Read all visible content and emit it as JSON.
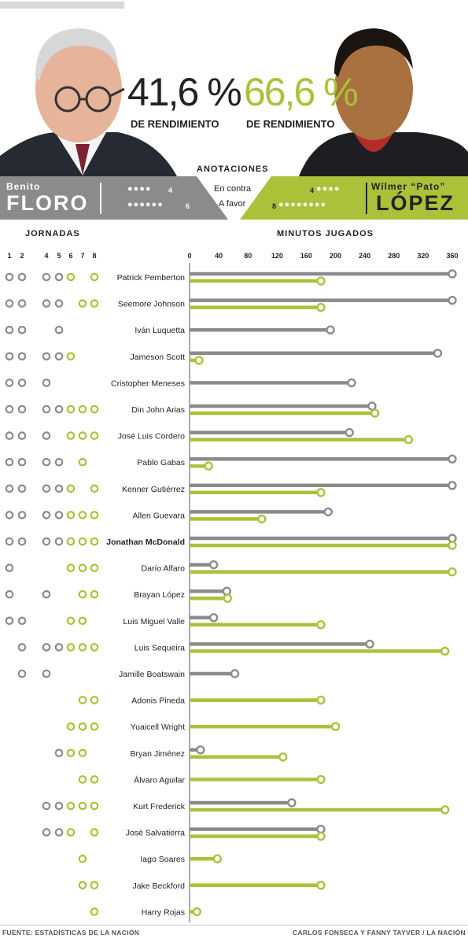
{
  "coaches": {
    "left": {
      "first": "Benito",
      "last": "FLORO",
      "pct": "41,6 %",
      "pct_label": "DE RENDIMIENTO",
      "against": "4",
      "for": "6"
    },
    "right": {
      "first": "Wílmer “Pato”",
      "last": "LÓPEZ",
      "pct": "66,6 %",
      "pct_label": "DE RENDIMIENTO",
      "against": "4",
      "for": "8"
    }
  },
  "legend": {
    "title": "ANOTACIONES",
    "against": "En contra",
    "for": "A favor"
  },
  "colors": {
    "floro": "#8b8b8d",
    "lopez": "#a9c23a"
  },
  "footer": {
    "source": "FUENTE: ESTADÍSTICAS DE LA NACIÓN",
    "credit": "CARLOS FONSECA Y FANNY TAYVER / LA NACIÓN"
  },
  "chart_data": {
    "type": "bar",
    "jornadas_title": "JORNADAS",
    "minutes_title": "MINUTOS JUGADOS",
    "jornadas": [
      "1",
      "2",
      "4",
      "5",
      "6",
      "7",
      "8"
    ],
    "xticks": [
      0,
      40,
      80,
      120,
      160,
      200,
      240,
      280,
      320,
      360
    ],
    "xlim": [
      0,
      360
    ],
    "players": [
      {
        "name": "Patrick Pemberton",
        "bold": false,
        "j": [
          "g",
          "g",
          "g",
          "g",
          "y",
          "",
          "y"
        ],
        "floro": 360,
        "lopez": 180
      },
      {
        "name": "Seemore Johnson",
        "bold": false,
        "j": [
          "g",
          "g",
          "g",
          "g",
          "",
          "y",
          "y"
        ],
        "floro": 360,
        "lopez": 180
      },
      {
        "name": "Iván Luquetta",
        "bold": false,
        "j": [
          "g",
          "g",
          "",
          "g",
          "",
          "",
          ""
        ],
        "floro": 193,
        "lopez": null
      },
      {
        "name": "Jameson Scott",
        "bold": false,
        "j": [
          "g",
          "g",
          "g",
          "g",
          "y",
          "",
          ""
        ],
        "floro": 340,
        "lopez": 13
      },
      {
        "name": "Cristopher Meneses",
        "bold": false,
        "j": [
          "g",
          "g",
          "g",
          "",
          "",
          "",
          ""
        ],
        "floro": 222,
        "lopez": null
      },
      {
        "name": "Din John Arias",
        "bold": false,
        "j": [
          "g",
          "g",
          "g",
          "g",
          "y",
          "y",
          "y"
        ],
        "floro": 250,
        "lopez": 254
      },
      {
        "name": "José Luis Cordero",
        "bold": false,
        "j": [
          "g",
          "g",
          "g",
          "",
          "y",
          "y",
          "y"
        ],
        "floro": 219,
        "lopez": 300
      },
      {
        "name": "Pablo Gabas",
        "bold": false,
        "j": [
          "g",
          "g",
          "g",
          "g",
          "",
          "y",
          ""
        ],
        "floro": 360,
        "lopez": 26
      },
      {
        "name": "Kenner Gutiérrez",
        "bold": false,
        "j": [
          "g",
          "g",
          "g",
          "g",
          "y",
          "",
          "y"
        ],
        "floro": 360,
        "lopez": 180
      },
      {
        "name": "Allen Guevara",
        "bold": false,
        "j": [
          "g",
          "g",
          "g",
          "g",
          "y",
          "y",
          "y"
        ],
        "floro": 190,
        "lopez": 99
      },
      {
        "name": "Jonathan McDonald",
        "bold": true,
        "j": [
          "g",
          "g",
          "g",
          "g",
          "y",
          "y",
          "y"
        ],
        "floro": 360,
        "lopez": 360
      },
      {
        "name": "Darío Alfaro",
        "bold": false,
        "j": [
          "g",
          "",
          "",
          "",
          "y",
          "y",
          "y"
        ],
        "floro": 33,
        "lopez": 360
      },
      {
        "name": "Brayan López",
        "bold": false,
        "j": [
          "g",
          "",
          "g",
          "",
          "",
          "y",
          "y"
        ],
        "floro": 51,
        "lopez": 52
      },
      {
        "name": "Luis Miguel Valle",
        "bold": false,
        "j": [
          "g",
          "g",
          "",
          "",
          "y",
          "y",
          ""
        ],
        "floro": 33,
        "lopez": 180
      },
      {
        "name": "Luis Sequeira",
        "bold": false,
        "j": [
          "",
          "g",
          "g",
          "g",
          "y",
          "y",
          "y"
        ],
        "floro": 247,
        "lopez": 350
      },
      {
        "name": "Jamille Boatswain",
        "bold": false,
        "j": [
          "",
          "g",
          "g",
          "",
          "",
          "",
          ""
        ],
        "floro": 62,
        "lopez": null
      },
      {
        "name": "Adonis Pineda",
        "bold": false,
        "j": [
          "",
          "",
          "",
          "",
          "",
          "y",
          "y"
        ],
        "floro": null,
        "lopez": 180
      },
      {
        "name": "Yuaicell Wright",
        "bold": false,
        "j": [
          "",
          "",
          "",
          "",
          "y",
          "y",
          "y"
        ],
        "floro": null,
        "lopez": 200
      },
      {
        "name": "Bryan Jiménez",
        "bold": false,
        "j": [
          "",
          "",
          "",
          "g",
          "y",
          "y",
          ""
        ],
        "floro": 15,
        "lopez": 128
      },
      {
        "name": "Álvaro Aguilar",
        "bold": false,
        "j": [
          "",
          "",
          "",
          "",
          "",
          "y",
          "y"
        ],
        "floro": null,
        "lopez": 180
      },
      {
        "name": "Kurt Frederick",
        "bold": false,
        "j": [
          "",
          "",
          "g",
          "g",
          "y",
          "y",
          "y"
        ],
        "floro": 140,
        "lopez": 350
      },
      {
        "name": "José Salvatierra",
        "bold": false,
        "j": [
          "",
          "",
          "g",
          "g",
          "y",
          "",
          "y"
        ],
        "floro": 180,
        "lopez": 180
      },
      {
        "name": "Iago Soares",
        "bold": false,
        "j": [
          "",
          "",
          "",
          "",
          "",
          "y",
          ""
        ],
        "floro": null,
        "lopez": 38
      },
      {
        "name": "Jake Beckford",
        "bold": false,
        "j": [
          "",
          "",
          "",
          "",
          "",
          "y",
          "y"
        ],
        "floro": null,
        "lopez": 180
      },
      {
        "name": "Harry Rojas",
        "bold": false,
        "j": [
          "",
          "",
          "",
          "",
          "",
          "",
          "y"
        ],
        "floro": null,
        "lopez": 10
      }
    ]
  }
}
